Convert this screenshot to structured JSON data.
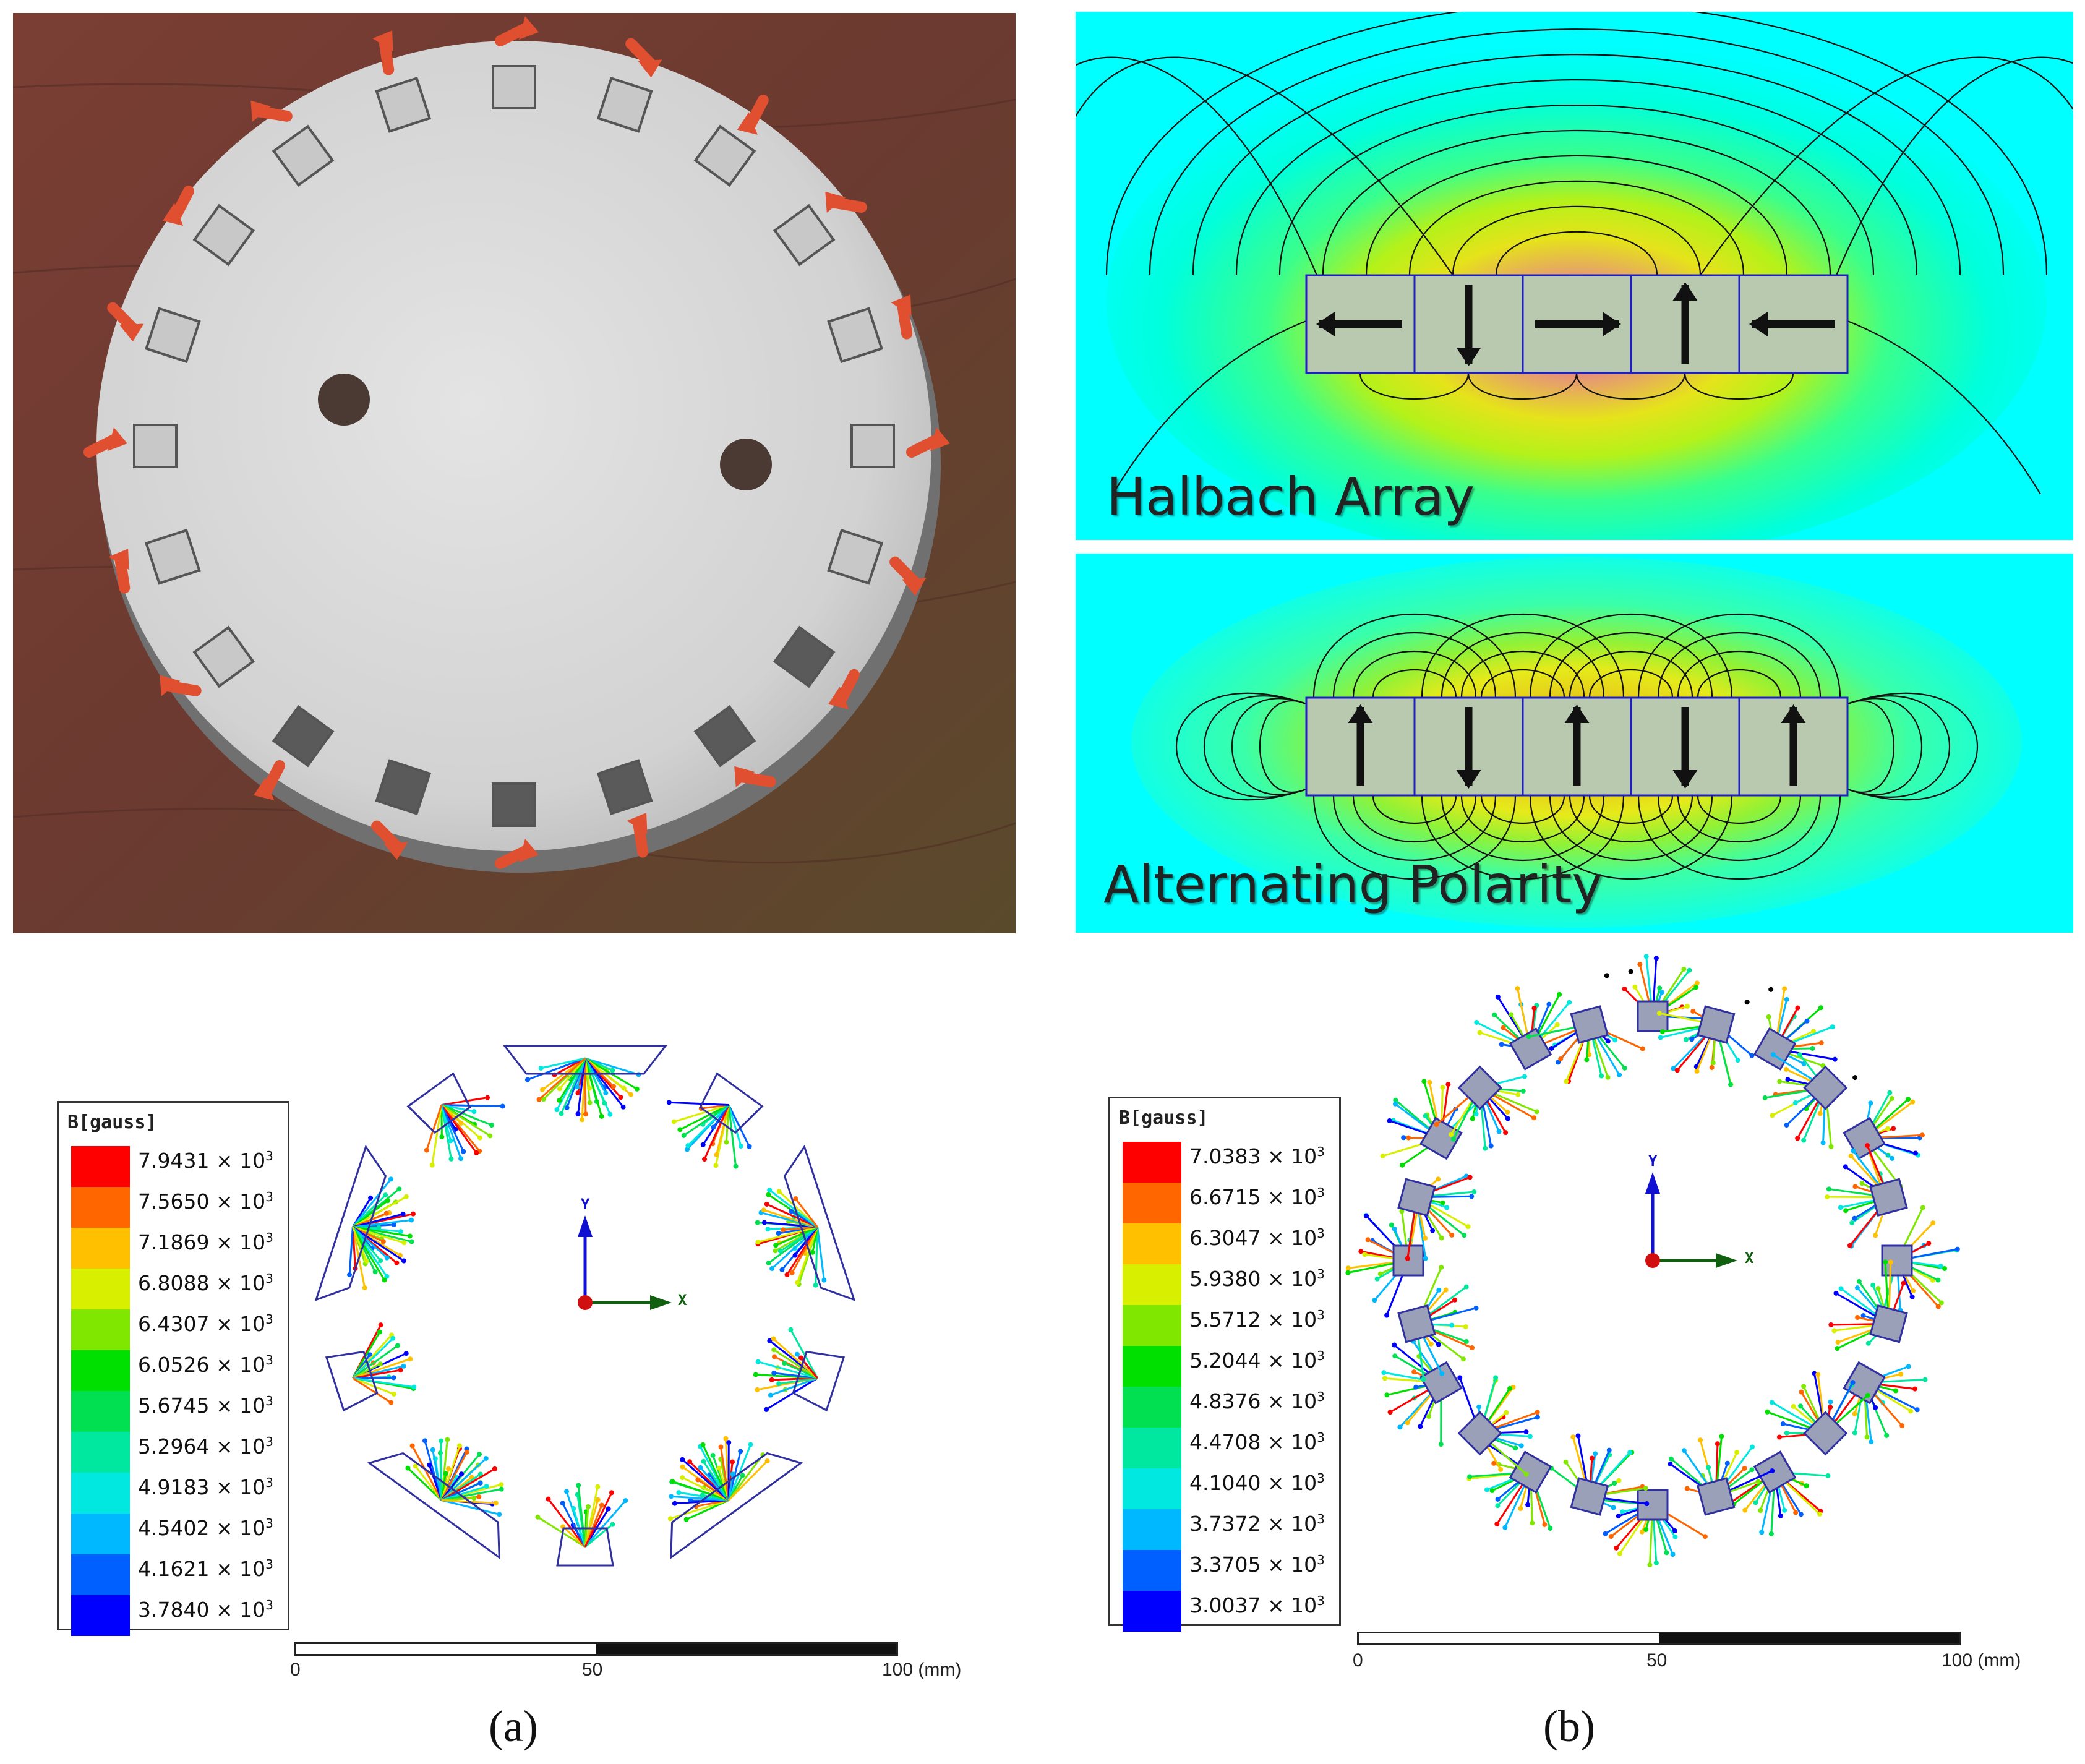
{
  "halbach": {
    "title": "Halbach Array",
    "magnet_directions": [
      "left",
      "down",
      "right",
      "up",
      "left"
    ]
  },
  "alternating": {
    "title": "Alternating Polarity",
    "magnet_directions": [
      "up",
      "down",
      "up",
      "down",
      "up"
    ]
  },
  "sim_a": {
    "legend_title": "B[gauss]",
    "legend_values": [
      "7.9431",
      "7.5650",
      "7.1869",
      "6.8088",
      "6.4307",
      "6.0526",
      "5.6745",
      "5.2964",
      "4.9183",
      "4.5402",
      "4.1621",
      "3.7840"
    ],
    "legend_multiplier": "× 10",
    "legend_exponent": "3",
    "axis_y": "Y",
    "axis_x": "X",
    "scale_ticks": [
      "0",
      "50",
      "100 (mm)"
    ],
    "caption": "(a)"
  },
  "sim_b": {
    "legend_title": "B[gauss]",
    "legend_values": [
      "7.0383",
      "6.6715",
      "6.3047",
      "5.9380",
      "5.5712",
      "5.2044",
      "4.8376",
      "4.4708",
      "4.1040",
      "3.7372",
      "3.3705",
      "3.0037"
    ],
    "legend_multiplier": "× 10",
    "legend_exponent": "3",
    "axis_y": "Y",
    "axis_x": "X",
    "scale_ticks": [
      "0",
      "50",
      "100 (mm)"
    ],
    "caption": "(b)"
  },
  "colors": {
    "legend_scale": [
      "#ff0000",
      "#ff6600",
      "#ffc000",
      "#d8f000",
      "#80e800",
      "#00e000",
      "#00e050",
      "#00e8a0",
      "#00e8e0",
      "#00b8ff",
      "#0060ff",
      "#0000ff"
    ],
    "field_background": "#00ffff",
    "magnet_fill": "#b8c9b0"
  },
  "sim_a_ring": {
    "group_count": 10
  },
  "sim_b_ring": {
    "magnet_count": 24
  }
}
